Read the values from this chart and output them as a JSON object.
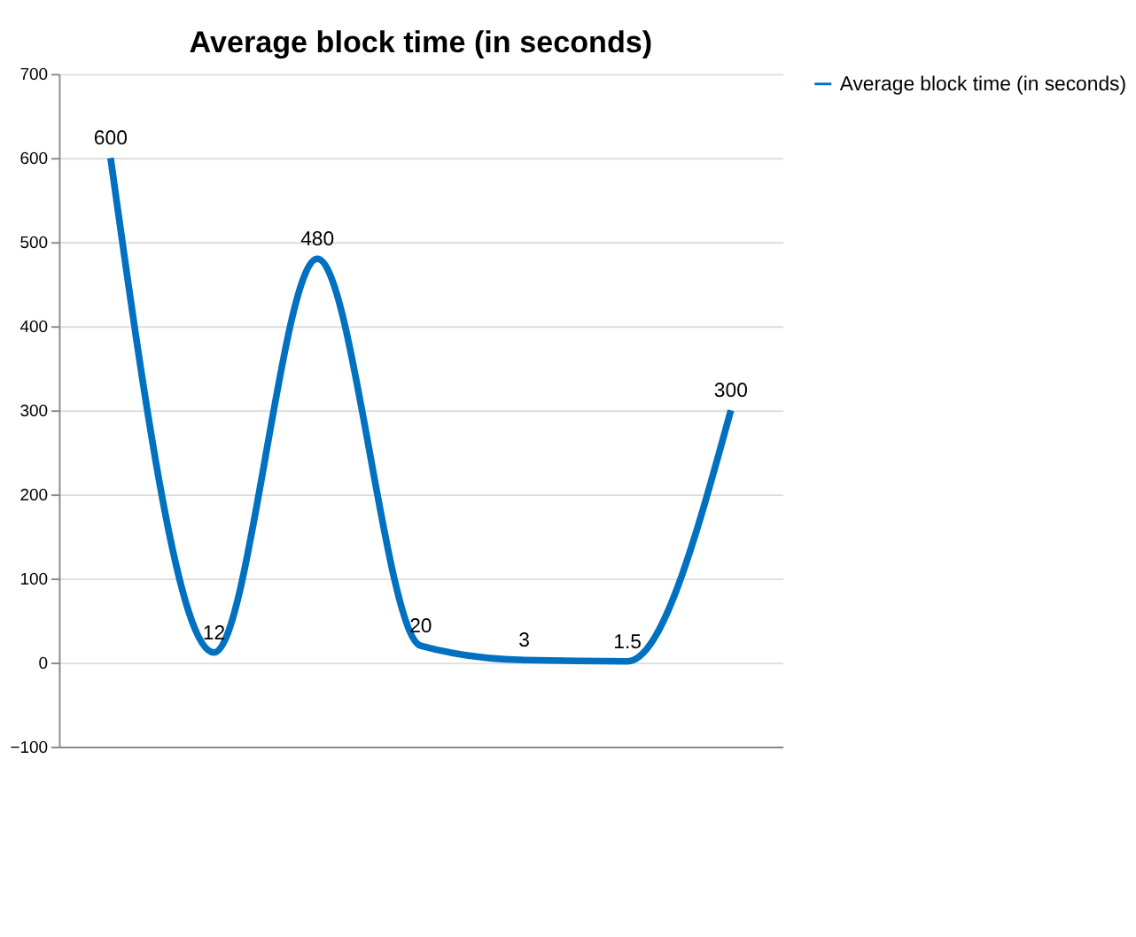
{
  "chart_data": {
    "type": "line",
    "title": "Average block time (in seconds)",
    "categories": [
      null,
      null,
      null,
      null,
      null,
      null,
      null
    ],
    "series": [
      {
        "name": "Average block time (in seconds)",
        "color": "#0070c0",
        "values": [
          600,
          12,
          480,
          20,
          3,
          1.5,
          300
        ]
      }
    ],
    "ylim": [
      -100,
      700
    ],
    "yticks": [
      -100,
      0,
      100,
      200,
      300,
      400,
      500,
      600,
      700
    ],
    "grid": "y",
    "legend": "right",
    "data_labels": true,
    "marker": "none",
    "line_style": "solid"
  }
}
